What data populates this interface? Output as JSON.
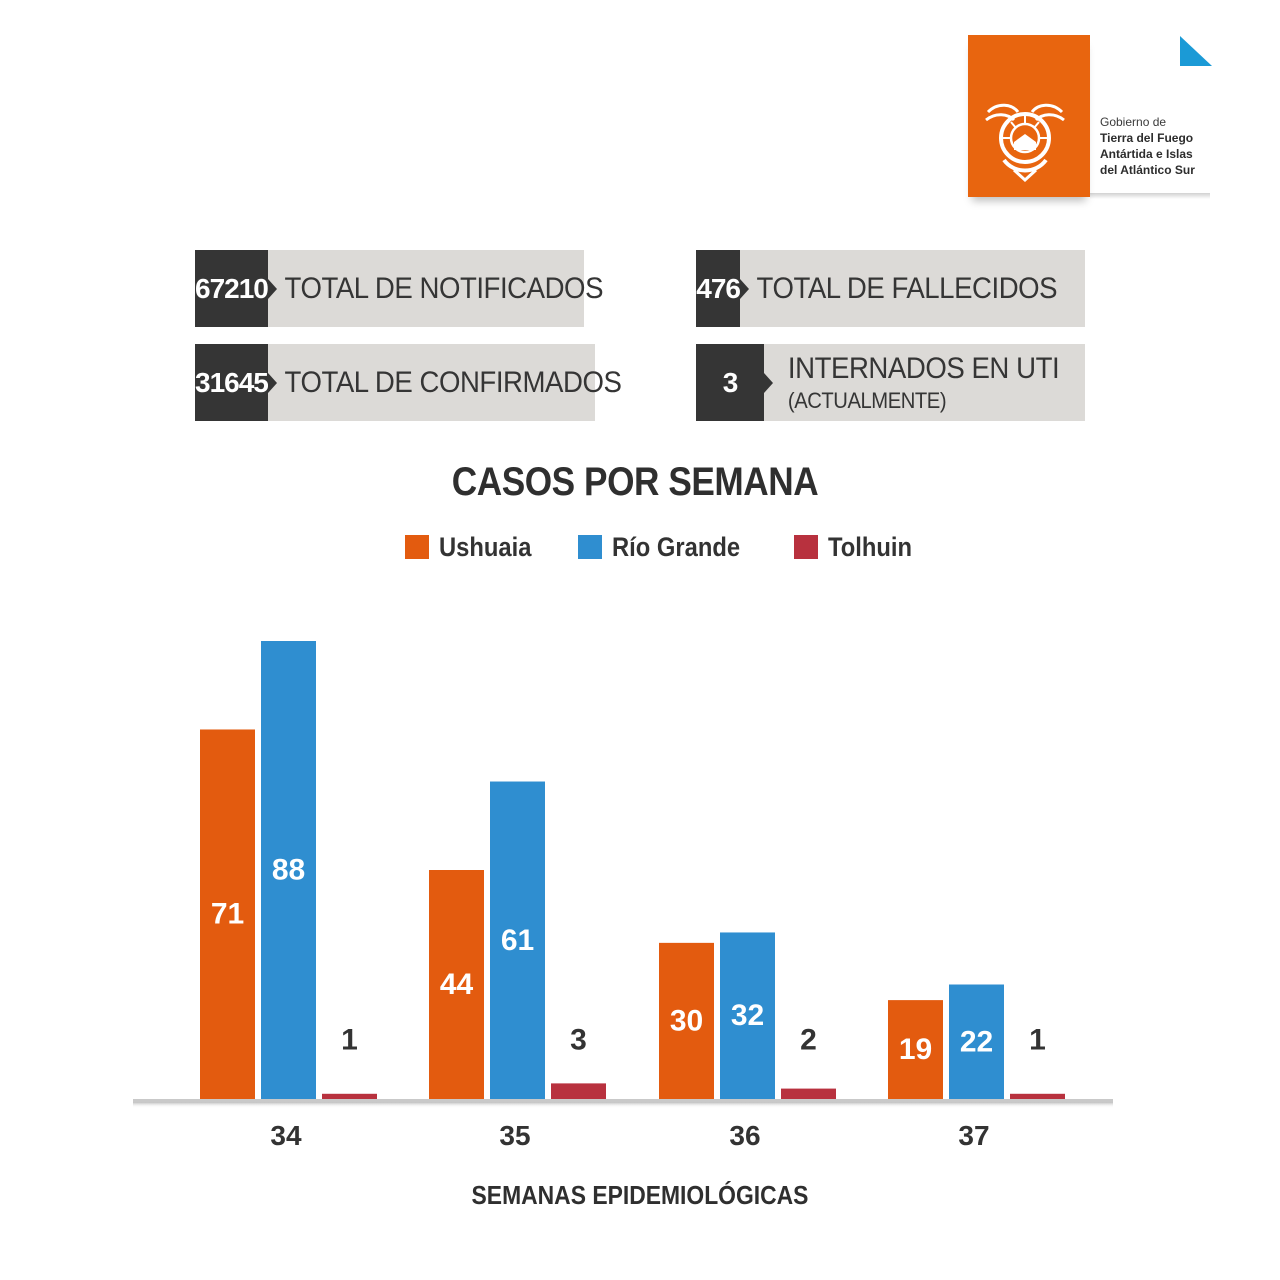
{
  "branding": {
    "gov_line1": "Gobierno de",
    "gov_line2": "Tierra del Fuego",
    "gov_line3": "Antártida e Islas",
    "gov_line4": "del Atlántico Sur",
    "logo_color": "#e8650f",
    "corner_color": "#1b9ad6"
  },
  "stats": {
    "notificados": {
      "value": "67210",
      "label": "TOTAL DE NOTIFICADOS"
    },
    "confirmados": {
      "value": "31645",
      "label": "TOTAL DE CONFIRMADOS"
    },
    "fallecidos": {
      "value": "476",
      "label": "TOTAL DE FALLECIDOS"
    },
    "uti": {
      "value": "3",
      "label": "INTERNADOS EN UTI",
      "sublabel": "(ACTUALMENTE)"
    }
  },
  "chart_data": {
    "type": "bar",
    "title": "CASOS POR SEMANA",
    "xlabel": "SEMANAS EPIDEMIOLÓGICAS",
    "ylabel": "",
    "categories": [
      "34",
      "35",
      "36",
      "37"
    ],
    "series": [
      {
        "name": "Ushuaia",
        "color": "#e35b0f",
        "values": [
          71,
          44,
          30,
          19
        ]
      },
      {
        "name": "Río Grande",
        "color": "#2f8ed0",
        "values": [
          88,
          61,
          32,
          22
        ]
      },
      {
        "name": "Tolhuin",
        "color": "#b8313e",
        "values": [
          1,
          3,
          2,
          1
        ]
      }
    ],
    "ylim": [
      0,
      90
    ],
    "grid": false,
    "legend": "top-center"
  }
}
